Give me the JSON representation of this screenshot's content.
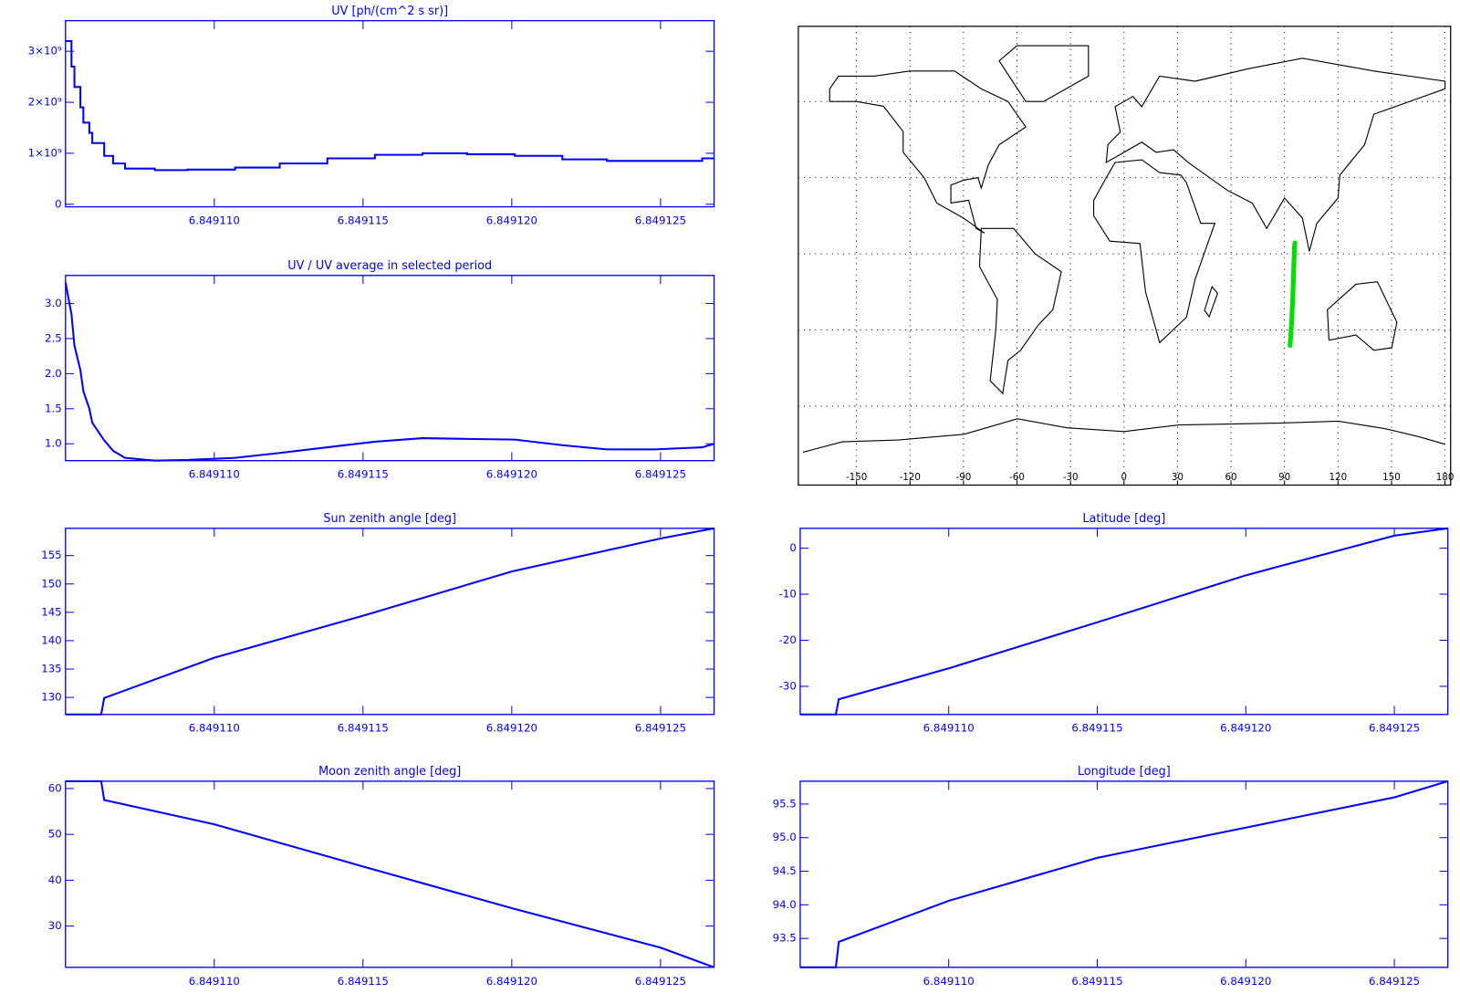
{
  "chart_data": [
    {
      "type": "line",
      "step": true,
      "title": "UV [ph/(cm^2 s sr)]",
      "color": "#0000ff",
      "x": [
        6.849105,
        6.8491052,
        6.8491053,
        6.8491055,
        6.8491056,
        6.8491058,
        6.8491059,
        6.8491063,
        6.8491066,
        6.849107,
        6.849108,
        6.8491091,
        6.8491107,
        6.8491122,
        6.8491138,
        6.8491154,
        6.849117,
        6.8491185,
        6.8491201,
        6.8491217,
        6.8491232,
        6.8491248,
        6.8491264,
        6.8491268
      ],
      "values": [
        3200000000,
        2700000000,
        2300000000,
        1900000000,
        1600000000,
        1400000000,
        1200000000,
        950000000,
        800000000,
        700000000,
        670000000,
        680000000,
        720000000,
        800000000,
        900000000,
        970000000,
        1000000000,
        980000000,
        950000000,
        880000000,
        850000000,
        850000000,
        900000000,
        900000000
      ],
      "xlim": [
        6.849105,
        6.8491268
      ],
      "ylim": [
        -50000000,
        3600000000
      ],
      "xticks": [
        {
          "value": 6.84911,
          "label": "6.849110"
        },
        6.849115,
        {
          "value": 6.84912,
          "label": "6.849120"
        },
        6.849125
      ],
      "yticks": [
        0,
        {
          "value": 1000000000,
          "label": "1×10⁹"
        },
        {
          "value": 2000000000,
          "label": "2×10⁹"
        },
        {
          "value": 3000000000,
          "label": "3×10⁹"
        }
      ]
    },
    {
      "type": "line",
      "title": "UV / UV average in selected period",
      "color": "#0000ff",
      "x": [
        6.849105,
        6.8491052,
        6.8491053,
        6.8491055,
        6.8491056,
        6.8491058,
        6.8491059,
        6.8491063,
        6.8491066,
        6.849107,
        6.849108,
        6.8491091,
        6.8491107,
        6.8491122,
        6.8491138,
        6.8491154,
        6.849117,
        6.8491185,
        6.8491201,
        6.8491217,
        6.8491232,
        6.8491248,
        6.8491264,
        6.8491268
      ],
      "values": [
        3.3,
        2.85,
        2.4,
        2.05,
        1.75,
        1.5,
        1.3,
        1.05,
        0.9,
        0.8,
        0.76,
        0.77,
        0.8,
        0.87,
        0.95,
        1.03,
        1.08,
        1.07,
        1.06,
        0.98,
        0.92,
        0.92,
        0.95,
        1.0
      ],
      "xlim": [
        6.849105,
        6.8491268
      ],
      "ylim": [
        0.76,
        3.4
      ],
      "xticks": [
        {
          "value": 6.84911,
          "label": "6.849110"
        },
        6.849115,
        {
          "value": 6.84912,
          "label": "6.849120"
        },
        6.849125
      ],
      "yticks": [
        {
          "value": 1,
          "label": "1.0"
        },
        1.5,
        {
          "value": 2,
          "label": "2.0"
        },
        2.5,
        {
          "value": 3,
          "label": "3.0"
        }
      ]
    },
    {
      "type": "map",
      "color": "#00e000",
      "grid": true,
      "x": [
        93.07,
        93.45,
        94.06,
        94.7,
        95.15,
        95.6,
        95.84
      ],
      "values": [
        -36.1,
        -32.8,
        -26.1,
        -16.1,
        -5.9,
        2.7,
        4.3
      ],
      "xlim": [
        -180,
        180
      ],
      "ylim": [
        -90,
        90
      ],
      "xticks": [
        -150,
        -120,
        -90,
        -60,
        -30,
        0,
        30,
        60,
        90,
        120,
        150,
        180
      ]
    },
    {
      "type": "line",
      "title": "Sun zenith angle [deg]",
      "color": "#0000ff",
      "x": [
        6.849105,
        6.8491062,
        6.8491063,
        6.84911,
        6.849115,
        6.84912,
        6.849125,
        6.8491268
      ],
      "values": [
        127,
        127,
        129.9,
        137,
        144.4,
        152.2,
        158,
        159.8
      ],
      "xlim": [
        6.849105,
        6.8491268
      ],
      "ylim": [
        127,
        159.8
      ],
      "xticks": [
        {
          "value": 6.84911,
          "label": "6.849110"
        },
        6.849115,
        {
          "value": 6.84912,
          "label": "6.849120"
        },
        6.849125
      ],
      "yticks": [
        130,
        135,
        140,
        145,
        150,
        155
      ]
    },
    {
      "type": "line",
      "title": "Latitude [deg]",
      "color": "#0000ff",
      "x": [
        6.849105,
        6.8491062,
        6.8491063,
        6.84911,
        6.849115,
        6.84912,
        6.849125,
        6.8491268
      ],
      "values": [
        -36.1,
        -36.1,
        -32.8,
        -26.1,
        -16.1,
        -5.9,
        2.7,
        4.3
      ],
      "xlim": [
        6.849105,
        6.8491268
      ],
      "ylim": [
        -36.1,
        4.3
      ],
      "xticks": [
        {
          "value": 6.84911,
          "label": "6.849110"
        },
        6.849115,
        {
          "value": 6.84912,
          "label": "6.849120"
        },
        6.849125
      ],
      "yticks": [
        -30,
        -20,
        -10,
        0
      ]
    },
    {
      "type": "line",
      "title": "Moon zenith angle [deg]",
      "color": "#0000ff",
      "x": [
        6.849105,
        6.8491062,
        6.8491063,
        6.84911,
        6.849115,
        6.84912,
        6.849125,
        6.8491268
      ],
      "values": [
        61.6,
        61.6,
        57.5,
        52.2,
        43,
        33.9,
        25.3,
        21
      ],
      "xlim": [
        6.849105,
        6.8491268
      ],
      "ylim": [
        21,
        61.6
      ],
      "xticks": [
        {
          "value": 6.84911,
          "label": "6.849110"
        },
        6.849115,
        {
          "value": 6.84912,
          "label": "6.849120"
        },
        6.849125
      ],
      "yticks": [
        30,
        40,
        50,
        60
      ]
    },
    {
      "type": "line",
      "title": "Longitude [deg]",
      "color": "#0000ff",
      "x": [
        6.849105,
        6.8491062,
        6.8491063,
        6.84911,
        6.849115,
        6.84912,
        6.849125,
        6.8491268
      ],
      "values": [
        93.07,
        93.07,
        93.45,
        94.06,
        94.7,
        95.15,
        95.6,
        95.84
      ],
      "xlim": [
        6.849105,
        6.8491268
      ],
      "ylim": [
        93.07,
        95.84
      ],
      "xticks": [
        {
          "value": 6.84911,
          "label": "6.849110"
        },
        6.849115,
        {
          "value": 6.84912,
          "label": "6.849120"
        },
        6.849125
      ],
      "yticks": [
        93.5,
        {
          "value": 94,
          "label": "94.0"
        },
        94.5,
        {
          "value": 95,
          "label": "95.0"
        },
        95.5
      ]
    }
  ]
}
